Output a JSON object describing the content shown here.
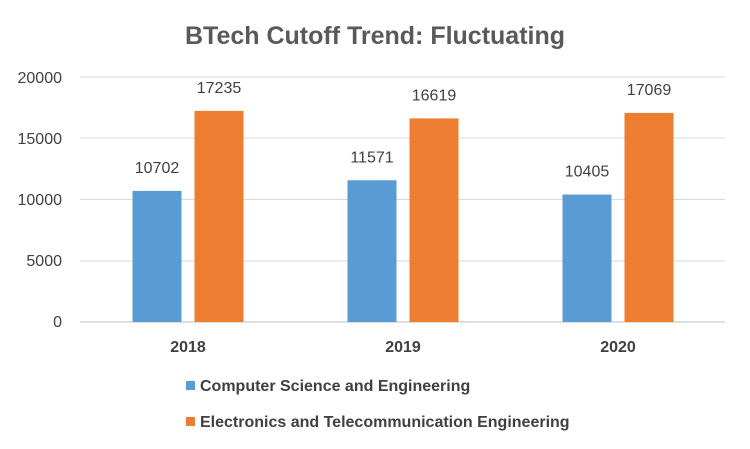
{
  "chart_data": {
    "type": "bar",
    "title": "BTech Cutoff Trend: Fluctuating",
    "categories": [
      "2018",
      "2019",
      "2020"
    ],
    "series": [
      {
        "name": "Computer Science and Engineering",
        "color": "#5B9BD5",
        "values": [
          10702,
          11571,
          10405
        ]
      },
      {
        "name": "Electronics and Telecommunication Engineering",
        "color": "#ED7D31",
        "values": [
          17235,
          16619,
          17069
        ]
      }
    ],
    "yticks": [
      "0",
      "5000",
      "10000",
      "15000",
      "20000"
    ],
    "ylim": [
      0,
      20000
    ],
    "xlabel": "",
    "ylabel": "",
    "grid": true,
    "legend": "bottom"
  }
}
